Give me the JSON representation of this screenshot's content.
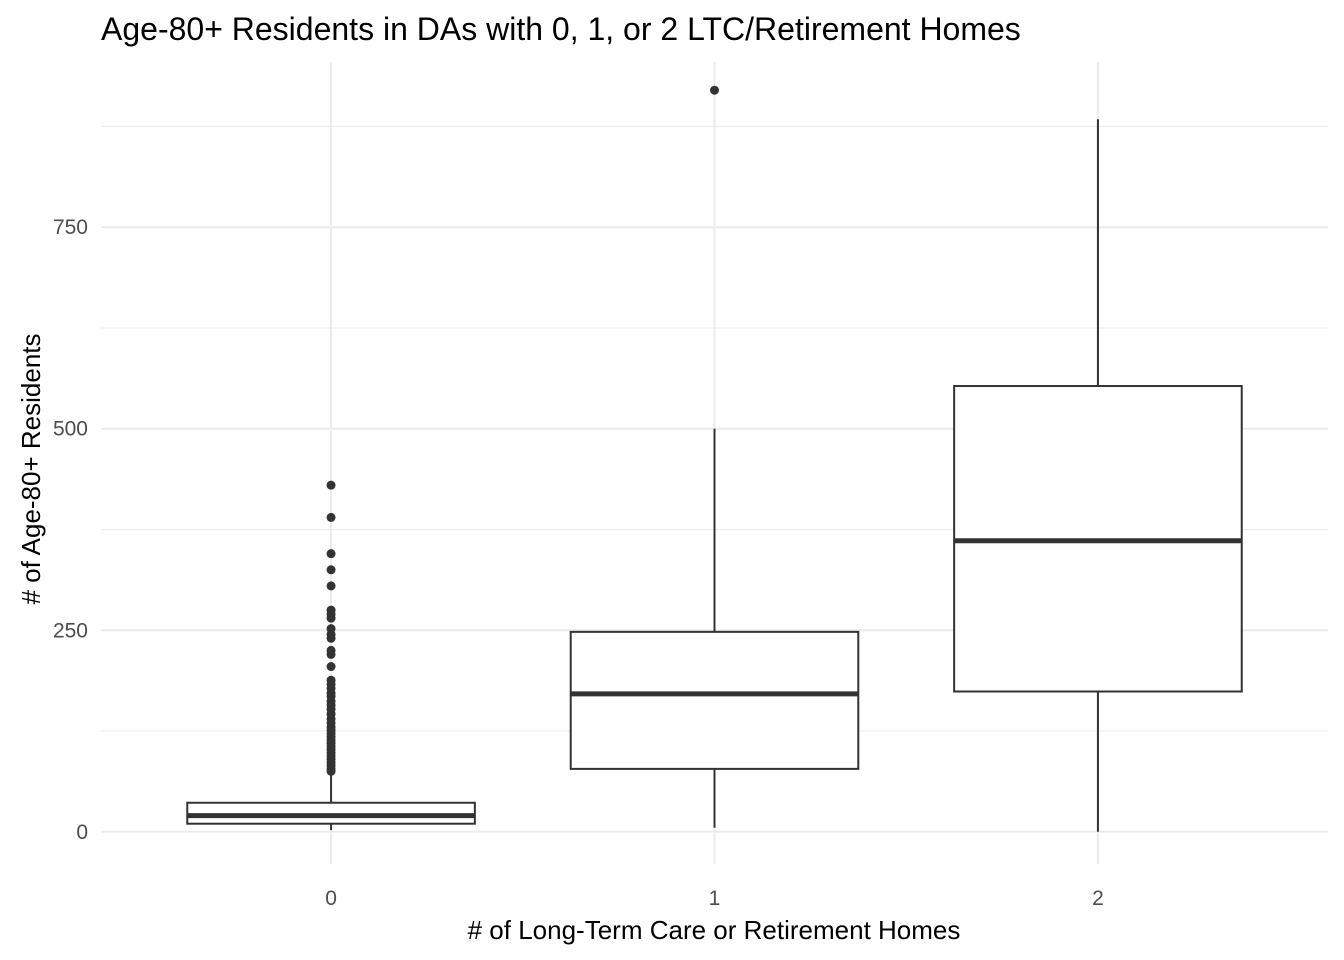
{
  "chart_data": {
    "type": "boxplot",
    "title": "Age-80+ Residents in DAs with 0, 1, or 2 LTC/Retirement Homes",
    "xlabel": "# of Long-Term Care or Retirement Homes",
    "ylabel": "# of Age-80+ Residents",
    "categories": [
      "0",
      "1",
      "2"
    ],
    "ylim": [
      -40,
      955
    ],
    "y_ticks": [
      0,
      250,
      500,
      750
    ],
    "y_tick_labels": [
      "0",
      "250",
      "500",
      "750"
    ],
    "grid": true,
    "colors": {
      "box_line": "#333333",
      "median": "#333333",
      "outlier": "#333333",
      "grid": "#ebebeb",
      "tick_label": "#4d4d4d"
    },
    "boxes": [
      {
        "category": "0",
        "whisker_low": 2,
        "q1": 10,
        "median": 20,
        "q3": 36,
        "whisker_high": 72,
        "outliers": [
          430,
          390,
          345,
          325,
          305,
          275,
          270,
          265,
          252,
          245,
          240,
          225,
          220,
          205,
          188,
          183,
          178,
          172,
          168,
          162,
          157,
          152,
          146,
          140,
          135,
          130,
          126,
          122,
          118,
          114,
          110,
          106,
          102,
          98,
          94,
          90,
          86,
          82,
          78,
          75
        ]
      },
      {
        "category": "1",
        "whisker_low": 5,
        "q1": 78,
        "median": 171,
        "q3": 248,
        "whisker_high": 500,
        "outliers": [
          920
        ]
      },
      {
        "category": "2",
        "whisker_low": 0,
        "q1": 174,
        "median": 361,
        "q3": 553,
        "whisker_high": 884,
        "outliers": []
      }
    ]
  }
}
